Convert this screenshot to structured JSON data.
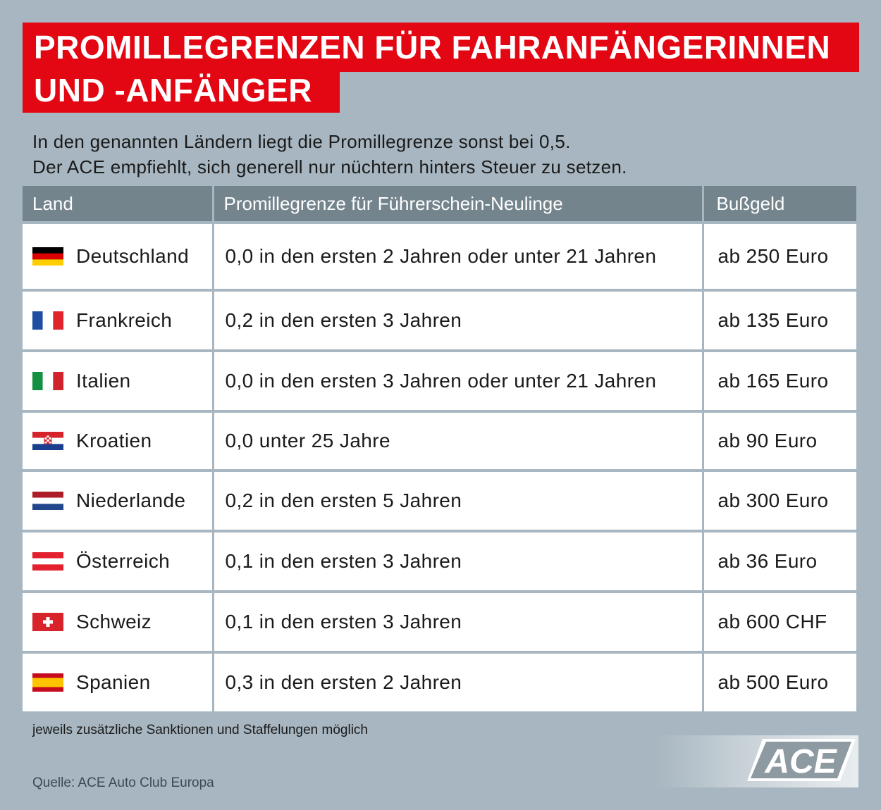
{
  "title": {
    "line1": "PROMILLEGRENZEN FÜR FAHRANFÄNGERINNEN",
    "line2": "UND -ANFÄNGER"
  },
  "intro": {
    "line1": "In den genannten Ländern liegt die Promillegrenze sonst bei 0,5.",
    "line2": "Der ACE empfiehlt, sich generell nur nüchtern hinters Steuer zu setzen."
  },
  "table": {
    "headers": [
      "Land",
      "Promillegrenze für Führerschein-Neulinge",
      "Bußgeld"
    ],
    "rows": [
      {
        "land": "Deutschland",
        "flag": "germany-flag-icon",
        "grenze": "0,0 in den ersten 2 Jahren oder unter 21 Jahren",
        "bussgeld": "ab 250 Euro"
      },
      {
        "land": "Frankreich",
        "flag": "france-flag-icon",
        "grenze": "0,2 in den ersten 3 Jahren",
        "bussgeld": "ab 135 Euro"
      },
      {
        "land": "Italien",
        "flag": "italy-flag-icon",
        "grenze": "0,0 in den ersten 3 Jahren oder unter 21 Jahren",
        "bussgeld": "ab 165 Euro"
      },
      {
        "land": "Kroatien",
        "flag": "croatia-flag-icon",
        "grenze": "0,0 unter 25 Jahre",
        "bussgeld": "ab 90 Euro"
      },
      {
        "land": "Niederlande",
        "flag": "netherlands-flag-icon",
        "grenze": "0,2 in den ersten 5 Jahren",
        "bussgeld": "ab 300 Euro"
      },
      {
        "land": "Österreich",
        "flag": "austria-flag-icon",
        "grenze": "0,1 in den ersten 3 Jahren",
        "bussgeld": "ab 36 Euro"
      },
      {
        "land": "Schweiz",
        "flag": "switzerland-flag-icon",
        "grenze": "0,1 in den ersten 3 Jahren",
        "bussgeld": "ab 600 CHF"
      },
      {
        "land": "Spanien",
        "flag": "spain-flag-icon",
        "grenze": "0,3 in den ersten 2 Jahren",
        "bussgeld": "ab 500 Euro"
      }
    ]
  },
  "footnote": "jeweils zusätzliche Sanktionen und Staffelungen möglich",
  "source": "Quelle: ACE Auto Club Europa",
  "logo_text": "ACE",
  "colors": {
    "background": "#a7b6c0",
    "title_red": "#e30613",
    "header_gray": "#74848d",
    "logo_gray": "#8e9aa1"
  }
}
